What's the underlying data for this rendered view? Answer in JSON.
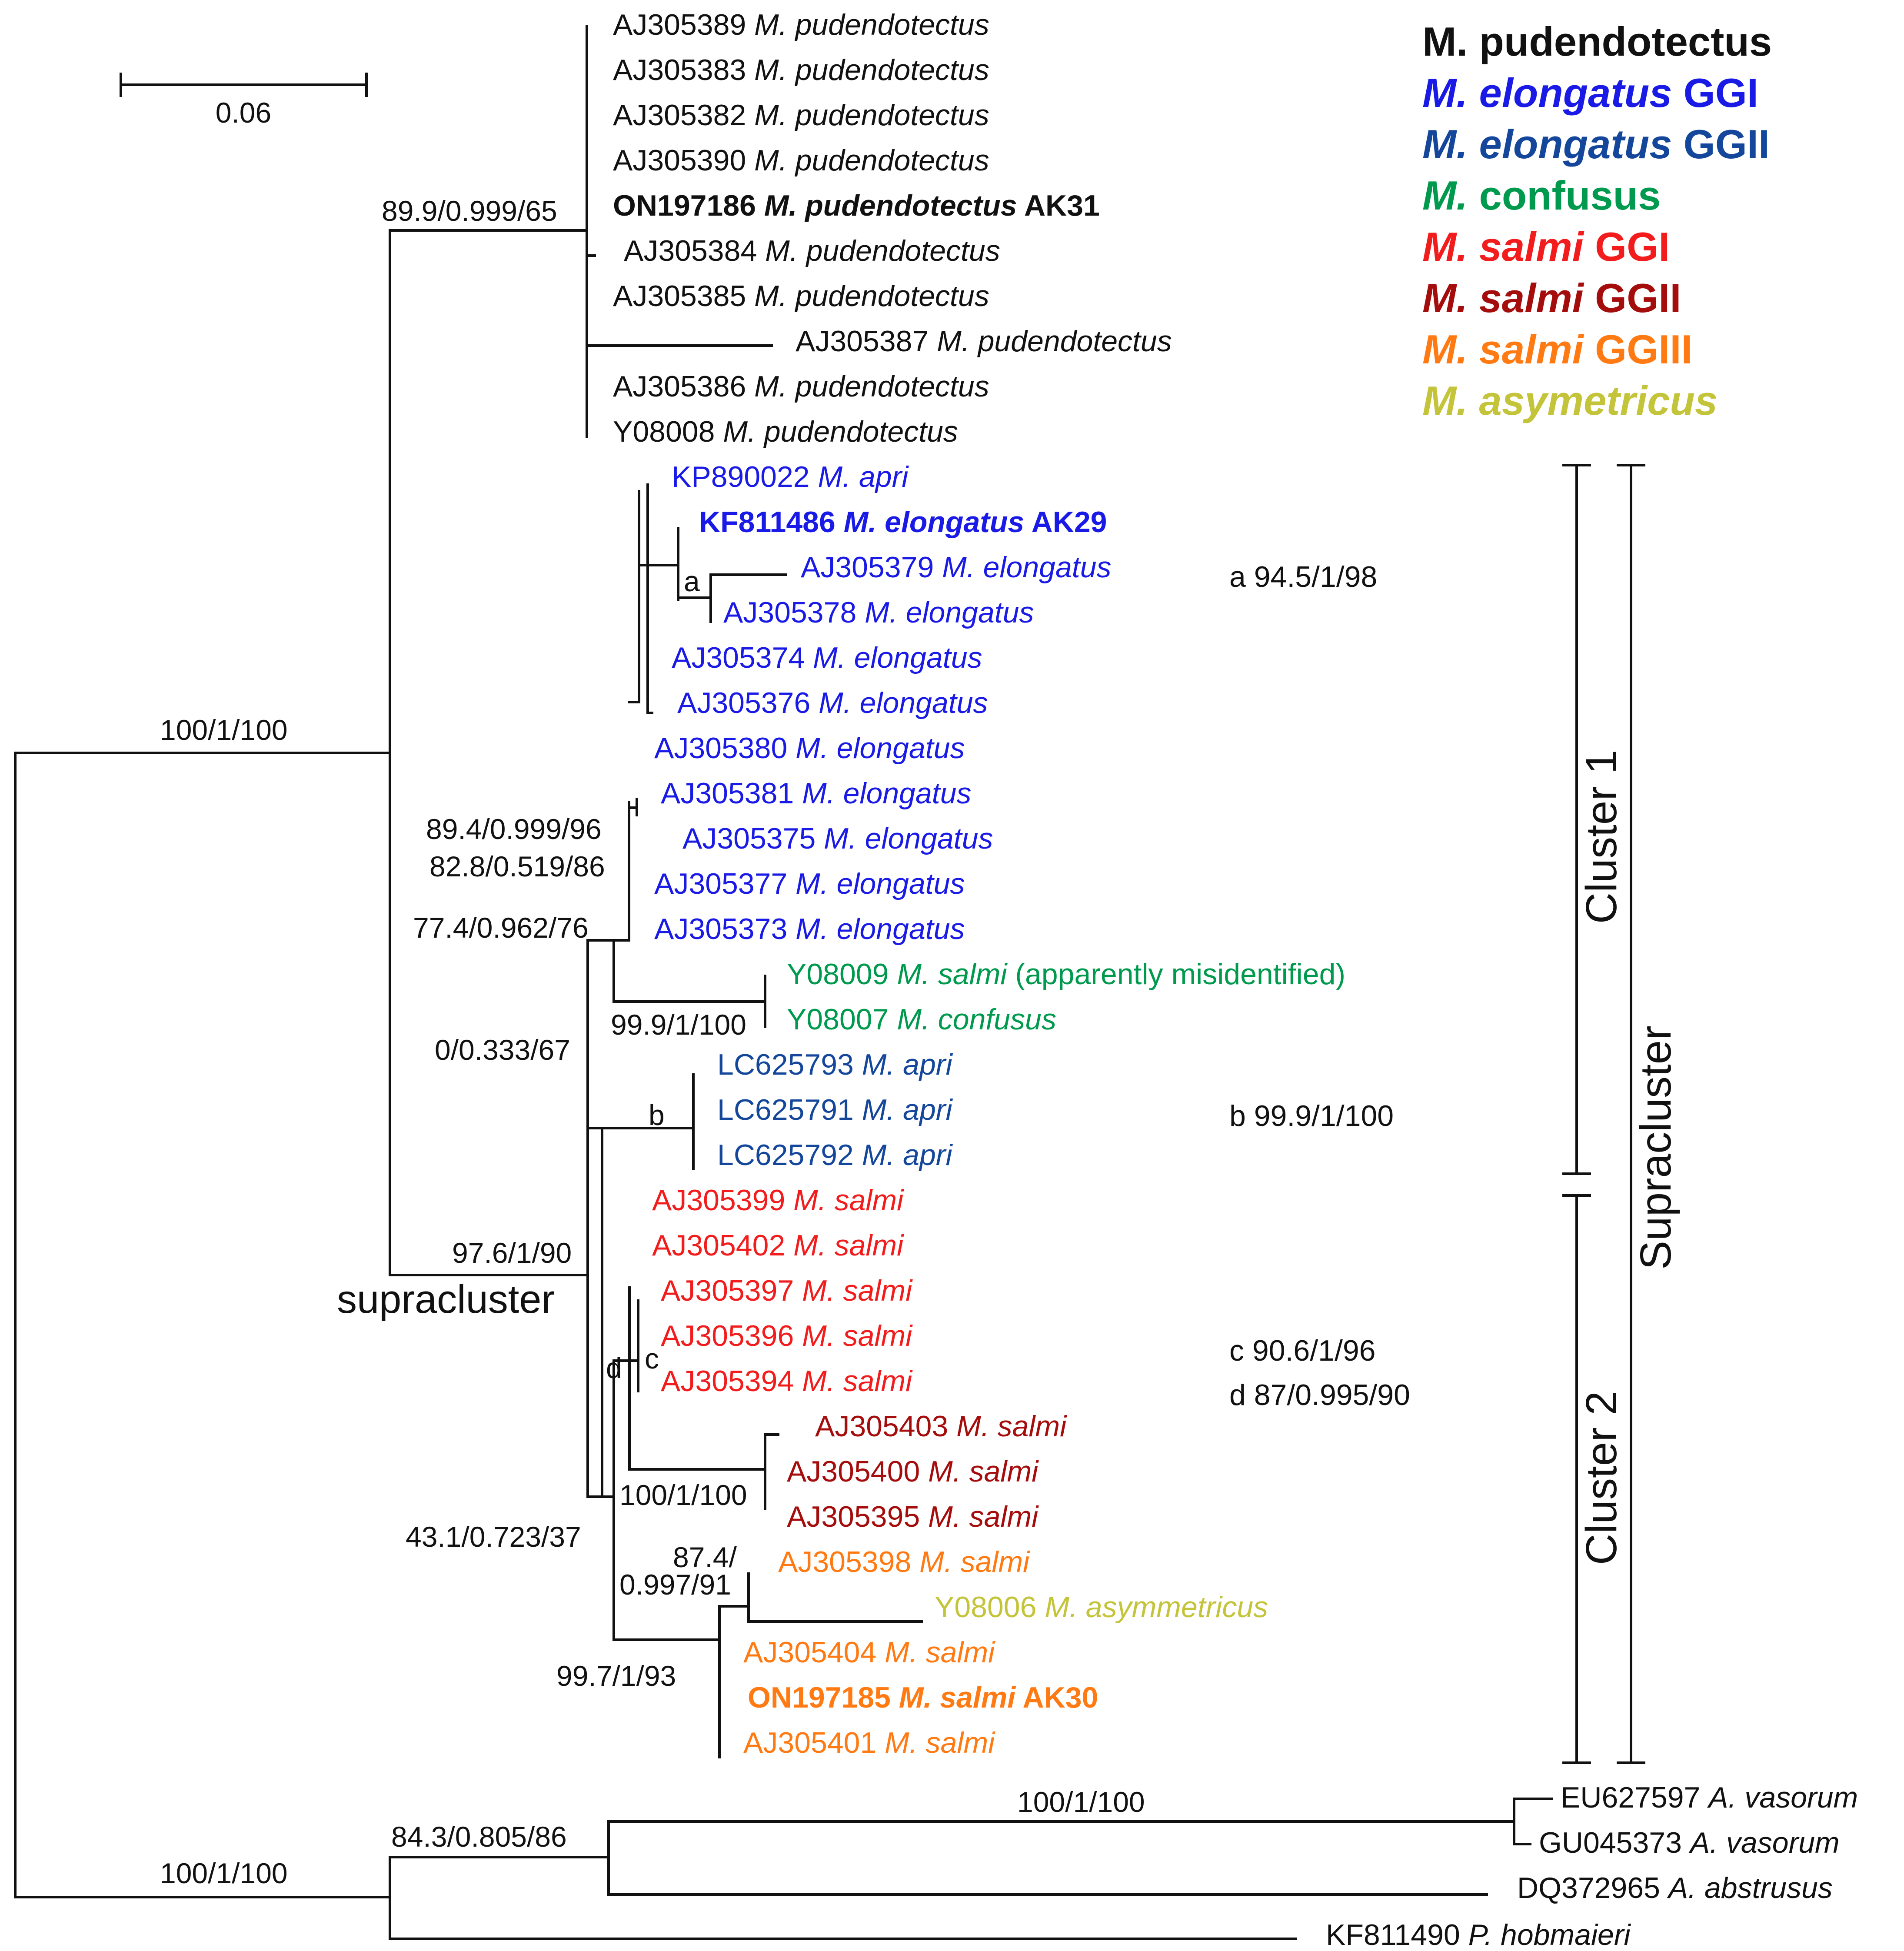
{
  "scale_bar": {
    "label": "0.06"
  },
  "colors": {
    "black": "#111111",
    "gg1_blue": "#1a1ae6",
    "gg2_blue": "#14479b",
    "green": "#009a4e",
    "red": "#f21c1c",
    "darkred": "#a50d0d",
    "orange": "#ff7a12",
    "olive": "#c4c43a"
  },
  "legend": [
    {
      "species": "M. pudendotectus",
      "group": "",
      "italic_species": false,
      "color": "#111111"
    },
    {
      "species": "M. elongatus",
      "group": "GGI",
      "italic_species": true,
      "color": "#1a1ae6"
    },
    {
      "species": "M. elongatus",
      "group": "GGII",
      "italic_species": true,
      "color": "#14479b"
    },
    {
      "species": "M.",
      "group": "confusus",
      "italic_species": true,
      "color": "#009a4e"
    },
    {
      "species": "M. salmi",
      "group": "GGI",
      "italic_species": true,
      "color": "#f21c1c"
    },
    {
      "species": "M. salmi",
      "group": "GGII",
      "italic_species": true,
      "color": "#a50d0d"
    },
    {
      "species": "M. salmi",
      "group": "GGIII",
      "italic_species": true,
      "color": "#ff7a12"
    },
    {
      "species": "M. asymetricus",
      "group": "",
      "italic_species": true,
      "color": "#c4c43a"
    }
  ],
  "taxa": [
    {
      "acc": "AJ305389",
      "species": "M. pudendotectus",
      "suffix": "",
      "color": "#111111",
      "bold": false
    },
    {
      "acc": "AJ305383",
      "species": "M. pudendotectus",
      "suffix": "",
      "color": "#111111",
      "bold": false
    },
    {
      "acc": "AJ305382",
      "species": "M. pudendotectus",
      "suffix": "",
      "color": "#111111",
      "bold": false
    },
    {
      "acc": "AJ305390",
      "species": "M. pudendotectus",
      "suffix": "",
      "color": "#111111",
      "bold": false
    },
    {
      "acc": "ON197186",
      "species": "M. pudendotectus",
      "suffix": "AK31",
      "color": "#111111",
      "bold": true
    },
    {
      "acc": "AJ305384",
      "species": "M.  pudendotectus",
      "suffix": "",
      "color": "#111111",
      "bold": false
    },
    {
      "acc": "AJ305385",
      "species": " M. pudendotectus",
      "suffix": "",
      "color": "#111111",
      "bold": false
    },
    {
      "acc": "AJ305387",
      "species": "M. pudendotectus",
      "suffix": "",
      "color": "#111111",
      "bold": false
    },
    {
      "acc": "AJ305386",
      "species": "M. pudendotectus",
      "suffix": "",
      "color": "#111111",
      "bold": false
    },
    {
      "acc": "Y08008",
      "species": "M. pudendotectus",
      "suffix": "",
      "color": "#111111",
      "bold": false
    },
    {
      "acc": "KP890022",
      "species": "M. apri",
      "suffix": "",
      "color": "#1a1ae6",
      "bold": false
    },
    {
      "acc": "KF811486",
      "species": "M. elongatus",
      "suffix": "AK29",
      "color": "#1a1ae6",
      "bold": true
    },
    {
      "acc": "AJ305379",
      "species": "M. elongatus",
      "suffix": "",
      "color": "#1a1ae6",
      "bold": false
    },
    {
      "acc": "AJ305378",
      "species": "M. elongatus",
      "suffix": "",
      "color": "#1a1ae6",
      "bold": false
    },
    {
      "acc": "AJ305374",
      "species": "M. elongatus",
      "suffix": "",
      "color": "#1a1ae6",
      "bold": false
    },
    {
      "acc": "AJ305376",
      "species": "M. elongatus",
      "suffix": "",
      "color": "#1a1ae6",
      "bold": false
    },
    {
      "acc": "AJ305380",
      "species": "M. elongatus",
      "suffix": "",
      "color": "#1a1ae6",
      "bold": false
    },
    {
      "acc": "AJ305381",
      "species": "M. elongatus",
      "suffix": "",
      "color": "#1a1ae6",
      "bold": false
    },
    {
      "acc": "AJ305375",
      "species": "M. elongatus",
      "suffix": "",
      "color": "#1a1ae6",
      "bold": false
    },
    {
      "acc": "AJ305377",
      "species": "M. elongatus",
      "suffix": "",
      "color": "#1a1ae6",
      "bold": false
    },
    {
      "acc": "AJ305373",
      "species": "M. elongatus",
      "suffix": "",
      "color": "#1a1ae6",
      "bold": false
    },
    {
      "acc": "Y08009",
      "species": "M. salmi",
      "suffix": "(apparently misidentified)",
      "color": "#009a4e",
      "bold": false
    },
    {
      "acc": "Y08007",
      "species": "M. confusus",
      "suffix": "",
      "color": "#009a4e",
      "bold": false
    },
    {
      "acc": "LC625793",
      "species": "M. apri",
      "suffix": "",
      "color": "#14479b",
      "bold": false
    },
    {
      "acc": "LC625791",
      "species": "M. apri",
      "suffix": "",
      "color": "#14479b",
      "bold": false
    },
    {
      "acc": "LC625792",
      "species": "M. apri",
      "suffix": "",
      "color": "#14479b",
      "bold": false
    },
    {
      "acc": "AJ305399",
      "species": "M. salmi",
      "suffix": "",
      "color": "#f21c1c",
      "bold": false
    },
    {
      "acc": "AJ305402",
      "species": "M. salmi",
      "suffix": "",
      "color": "#f21c1c",
      "bold": false
    },
    {
      "acc": "AJ305397",
      "species": "M. salmi",
      "suffix": "",
      "color": "#f21c1c",
      "bold": false
    },
    {
      "acc": "AJ305396",
      "species": "M. salmi",
      "suffix": "",
      "color": "#f21c1c",
      "bold": false
    },
    {
      "acc": "AJ305394",
      "species": "M. salmi",
      "suffix": "",
      "color": "#f21c1c",
      "bold": false
    },
    {
      "acc": "AJ305403",
      "species": "M. salmi",
      "suffix": "",
      "color": "#a50d0d",
      "bold": false
    },
    {
      "acc": "AJ305400",
      "species": "M. salmi",
      "suffix": "",
      "color": "#a50d0d",
      "bold": false
    },
    {
      "acc": "AJ305395",
      "species": "M. salmi",
      "suffix": "",
      "color": "#a50d0d",
      "bold": false
    },
    {
      "acc": "AJ305398",
      "species": "M. salmi",
      "suffix": "",
      "color": "#ff7a12",
      "bold": false
    },
    {
      "acc": "Y08006",
      "species": "M. asymmetricus",
      "suffix": "",
      "color": "#c4c43a",
      "bold": false
    },
    {
      "acc": "AJ305404",
      "species": "M. salmi",
      "suffix": "",
      "color": "#ff7a12",
      "bold": false
    },
    {
      "acc": "ON197185",
      "species": "M. salmi",
      "suffix": "AK30",
      "color": "#ff7a12",
      "bold": true
    },
    {
      "acc": "AJ305401",
      "species": "M. salmi",
      "suffix": "",
      "color": "#ff7a12",
      "bold": false
    },
    {
      "acc": "EU627597",
      "species": "A. vasorum",
      "suffix": "",
      "color": "#111111",
      "bold": false
    },
    {
      "acc": "GU045373",
      "species": "A. vasorum",
      "suffix": "",
      "color": "#111111",
      "bold": false
    },
    {
      "acc": "DQ372965",
      "species": "A. abstrusus",
      "suffix": "",
      "color": "#111111",
      "bold": false
    },
    {
      "acc": "KF811490",
      "species": "P. hobmaieri",
      "suffix": "",
      "color": "#111111",
      "bold": false
    }
  ],
  "node_labels": {
    "pudendotectus": "89.9/0.999/65",
    "root_upper": "100/1/100",
    "root_lower": "100/1/100",
    "elong_a": "89.4/0.999/96",
    "elong_b": "82.8/0.519/86",
    "elong_c": "77.4/0.962/76",
    "confusus": "99.9/1/100",
    "apri": "0/0.333/67",
    "supracluster": "97.6/1/90",
    "salmi_gg2": "100/1/100",
    "salmi_gg3_top": "87.4/",
    "salmi_gg3_bottom": "0.997/91",
    "salmi_gg3": "99.7/1/93",
    "salmi_all": "43.1/0.723/37",
    "outgroup_vasorum": "100/1/100",
    "outgroup": "84.3/0.805/86"
  },
  "node_letters": {
    "a": "a",
    "b": "b",
    "c": "c",
    "d": "d"
  },
  "notes": {
    "a": "a 94.5/1/98",
    "b": "b 99.9/1/100",
    "c": "c 90.6/1/96",
    "d": "d 87/0.995/90"
  },
  "supracluster_label": "supracluster",
  "clusters": {
    "cluster1": "Cluster 1",
    "cluster2": "Cluster 2",
    "supracluster": "Supracluster"
  }
}
